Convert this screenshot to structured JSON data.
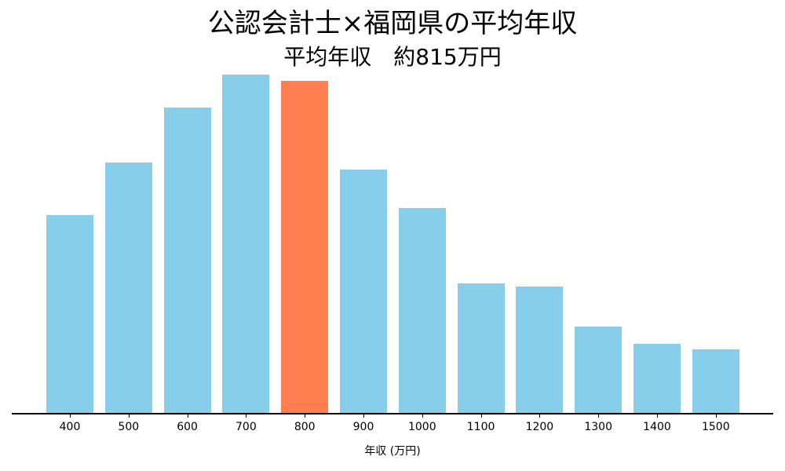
{
  "chart_data": {
    "type": "bar",
    "title": "公認会計士×福岡県の平均年収",
    "subtitle": "平均年収　約815万円",
    "xlabel": "年収 (万円)",
    "ylabel": "",
    "categories": [
      "400",
      "500",
      "600",
      "700",
      "800",
      "900",
      "1000",
      "1100",
      "1200",
      "1300",
      "1400",
      "1500"
    ],
    "values": [
      253,
      320,
      390,
      432,
      424,
      311,
      262,
      166,
      162,
      111,
      89,
      82
    ],
    "highlight_index": 4,
    "ylim": [
      0,
      455
    ],
    "grid": false,
    "legend": null,
    "colors": {
      "bar": "#87CEEB",
      "highlight": "#FF7F50",
      "axis": "#000000"
    },
    "notes": "Y-axis hidden; values are relative bar heights estimated from pixels."
  }
}
